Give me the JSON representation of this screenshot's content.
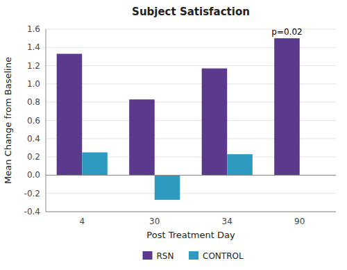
{
  "chart_data": {
    "type": "bar",
    "title": "Subject Satisfaction",
    "x_label": "Post Treatment Day",
    "y_label": "Mean Change from Baseline",
    "categories": [
      "4",
      "30",
      "34",
      "90"
    ],
    "series": [
      {
        "name": "RSN",
        "color": "#5b3a8e",
        "values": [
          1.33,
          0.83,
          1.17,
          1.5
        ]
      },
      {
        "name": "CONTROL",
        "color": "#2e9abf",
        "values": [
          0.25,
          -0.27,
          0.23,
          null
        ]
      }
    ],
    "ylim": [
      -0.4,
      1.6
    ],
    "yticks": [
      -0.4,
      -0.2,
      {
        "value": 0,
        "label": "0.0"
      },
      0.2,
      0.4,
      0.6,
      0.8,
      {
        "value": 1.0,
        "label": "1.0"
      },
      1.2,
      1.4,
      1.6
    ],
    "annotations": [
      {
        "text": "p=0.02",
        "x": "90",
        "y": 1.52
      }
    ],
    "grid": true,
    "legend": "bottom"
  }
}
